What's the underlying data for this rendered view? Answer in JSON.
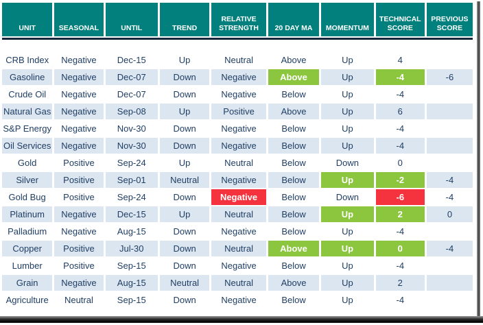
{
  "table": {
    "columns": [
      {
        "key": "unit",
        "label": "UNIT"
      },
      {
        "key": "seasonal",
        "label": "SEASONAL"
      },
      {
        "key": "until",
        "label": "UNTIL"
      },
      {
        "key": "trend",
        "label": "TREND"
      },
      {
        "key": "relative_strength",
        "label": "RELATIVE STRENGTH"
      },
      {
        "key": "ma20",
        "label": "20 DAY MA"
      },
      {
        "key": "momentum",
        "label": "MOMENTUM"
      },
      {
        "key": "technical_score",
        "label": "TECHNICAL SCORE"
      },
      {
        "key": "previous_score",
        "label": "PREVIOUS SCORE"
      }
    ],
    "rows": [
      {
        "unit": "CRB Index",
        "seasonal": "Negative",
        "until": "Dec-15",
        "trend": "Up",
        "relative_strength": "Neutral",
        "ma20": "Above",
        "momentum": "Up",
        "technical_score": "4",
        "previous_score": "",
        "highlights": {}
      },
      {
        "unit": "Gasoline",
        "seasonal": "Negative",
        "until": "Dec-07",
        "trend": "Down",
        "relative_strength": "Negative",
        "ma20": "Above",
        "momentum": "Up",
        "technical_score": "-4",
        "previous_score": "-6",
        "highlights": {
          "ma20": "green",
          "technical_score": "green"
        }
      },
      {
        "unit": "Crude Oil",
        "seasonal": "Negative",
        "until": "Dec-07",
        "trend": "Down",
        "relative_strength": "Negative",
        "ma20": "Below",
        "momentum": "Up",
        "technical_score": "-4",
        "previous_score": "",
        "highlights": {}
      },
      {
        "unit": "Natural Gas",
        "seasonal": "Negative",
        "until": "Sep-08",
        "trend": "Up",
        "relative_strength": "Positive",
        "ma20": "Above",
        "momentum": "Up",
        "technical_score": "6",
        "previous_score": "",
        "highlights": {}
      },
      {
        "unit": "S&P Energy",
        "seasonal": "Negative",
        "until": "Nov-30",
        "trend": "Down",
        "relative_strength": "Negative",
        "ma20": "Below",
        "momentum": "Up",
        "technical_score": "-4",
        "previous_score": "",
        "highlights": {}
      },
      {
        "unit": "Oil Services",
        "seasonal": "Negative",
        "until": "Nov-30",
        "trend": "Down",
        "relative_strength": "Negative",
        "ma20": "Below",
        "momentum": "Up",
        "technical_score": "-4",
        "previous_score": "",
        "highlights": {}
      },
      {
        "unit": "Gold",
        "seasonal": "Positive",
        "until": "Sep-24",
        "trend": "Up",
        "relative_strength": "Neutral",
        "ma20": "Below",
        "momentum": "Down",
        "technical_score": "0",
        "previous_score": "",
        "highlights": {}
      },
      {
        "unit": "Silver",
        "seasonal": "Positive",
        "until": "Sep-01",
        "trend": "Neutral",
        "relative_strength": "Negative",
        "ma20": "Below",
        "momentum": "Up",
        "technical_score": "-2",
        "previous_score": "-4",
        "highlights": {
          "momentum": "green",
          "technical_score": "green"
        }
      },
      {
        "unit": "Gold Bug",
        "seasonal": "Positive",
        "until": "Sep-24",
        "trend": "Down",
        "relative_strength": "Negative",
        "ma20": "Below",
        "momentum": "Down",
        "technical_score": "-6",
        "previous_score": "-4",
        "highlights": {
          "relative_strength": "red",
          "technical_score": "red"
        }
      },
      {
        "unit": "Platinum",
        "seasonal": "Negative",
        "until": "Dec-15",
        "trend": "Up",
        "relative_strength": "Neutral",
        "ma20": "Below",
        "momentum": "Up",
        "technical_score": "2",
        "previous_score": "0",
        "highlights": {
          "momentum": "green",
          "technical_score": "green"
        }
      },
      {
        "unit": "Palladium",
        "seasonal": "Negative",
        "until": "Aug-15",
        "trend": "Down",
        "relative_strength": "Negative",
        "ma20": "Below",
        "momentum": "Up",
        "technical_score": "-4",
        "previous_score": "",
        "highlights": {}
      },
      {
        "unit": "Copper",
        "seasonal": "Positive",
        "until": "Jul-30",
        "trend": "Down",
        "relative_strength": "Neutral",
        "ma20": "Above",
        "momentum": "Up",
        "technical_score": "0",
        "previous_score": "-4",
        "highlights": {
          "ma20": "green",
          "momentum": "green",
          "technical_score": "green"
        }
      },
      {
        "unit": "Lumber",
        "seasonal": "Positive",
        "until": "Sep-15",
        "trend": "Down",
        "relative_strength": "Negative",
        "ma20": "Below",
        "momentum": "Up",
        "technical_score": "-4",
        "previous_score": "",
        "highlights": {}
      },
      {
        "unit": "Grain",
        "seasonal": "Negative",
        "until": "Aug-15",
        "trend": "Neutral",
        "relative_strength": "Neutral",
        "ma20": "Above",
        "momentum": "Up",
        "technical_score": "2",
        "previous_score": "",
        "highlights": {}
      },
      {
        "unit": "Agriculture",
        "seasonal": "Neutral",
        "until": "Sep-15",
        "trend": "Down",
        "relative_strength": "Negative",
        "ma20": "Below",
        "momentum": "Up",
        "technical_score": "-4",
        "previous_score": "",
        "highlights": {}
      }
    ]
  },
  "colors": {
    "header_bg": "#02807D",
    "header_text": "#FFFFFF",
    "divider": "#16283C",
    "row_white": "#FFFFFF",
    "row_alt_blue": "#DCE6F1",
    "highlight_green": "#8CC63F",
    "highlight_red": "#F5333F",
    "body_text": "#1F3E63"
  },
  "chart_data": {
    "type": "table",
    "columns": [
      "UNIT",
      "SEASONAL",
      "UNTIL",
      "TREND",
      "RELATIVE STRENGTH",
      "20 DAY MA",
      "MOMENTUM",
      "TECHNICAL SCORE",
      "PREVIOUS SCORE"
    ],
    "rows": [
      [
        "CRB Index",
        "Negative",
        "Dec-15",
        "Up",
        "Neutral",
        "Above",
        "Up",
        "4",
        ""
      ],
      [
        "Gasoline",
        "Negative",
        "Dec-07",
        "Down",
        "Negative",
        "Above",
        "Up",
        "-4",
        "-6"
      ],
      [
        "Crude Oil",
        "Negative",
        "Dec-07",
        "Down",
        "Negative",
        "Below",
        "Up",
        "-4",
        ""
      ],
      [
        "Natural Gas",
        "Negative",
        "Sep-08",
        "Up",
        "Positive",
        "Above",
        "Up",
        "6",
        ""
      ],
      [
        "S&P Energy",
        "Negative",
        "Nov-30",
        "Down",
        "Negative",
        "Below",
        "Up",
        "-4",
        ""
      ],
      [
        "Oil Services",
        "Negative",
        "Nov-30",
        "Down",
        "Negative",
        "Below",
        "Up",
        "-4",
        ""
      ],
      [
        "Gold",
        "Positive",
        "Sep-24",
        "Up",
        "Neutral",
        "Below",
        "Down",
        "0",
        ""
      ],
      [
        "Silver",
        "Positive",
        "Sep-01",
        "Neutral",
        "Negative",
        "Below",
        "Up",
        "-2",
        "-4"
      ],
      [
        "Gold Bug",
        "Positive",
        "Sep-24",
        "Down",
        "Negative",
        "Below",
        "Down",
        "-6",
        "-4"
      ],
      [
        "Platinum",
        "Negative",
        "Dec-15",
        "Up",
        "Neutral",
        "Below",
        "Up",
        "2",
        "0"
      ],
      [
        "Palladium",
        "Negative",
        "Aug-15",
        "Down",
        "Negative",
        "Below",
        "Up",
        "-4",
        ""
      ],
      [
        "Copper",
        "Positive",
        "Jul-30",
        "Down",
        "Neutral",
        "Above",
        "Up",
        "0",
        "-4"
      ],
      [
        "Lumber",
        "Positive",
        "Sep-15",
        "Down",
        "Negative",
        "Below",
        "Up",
        "-4",
        ""
      ],
      [
        "Grain",
        "Negative",
        "Aug-15",
        "Neutral",
        "Neutral",
        "Above",
        "Up",
        "2",
        ""
      ],
      [
        "Agriculture",
        "Neutral",
        "Sep-15",
        "Down",
        "Negative",
        "Below",
        "Up",
        "-4",
        ""
      ]
    ]
  }
}
